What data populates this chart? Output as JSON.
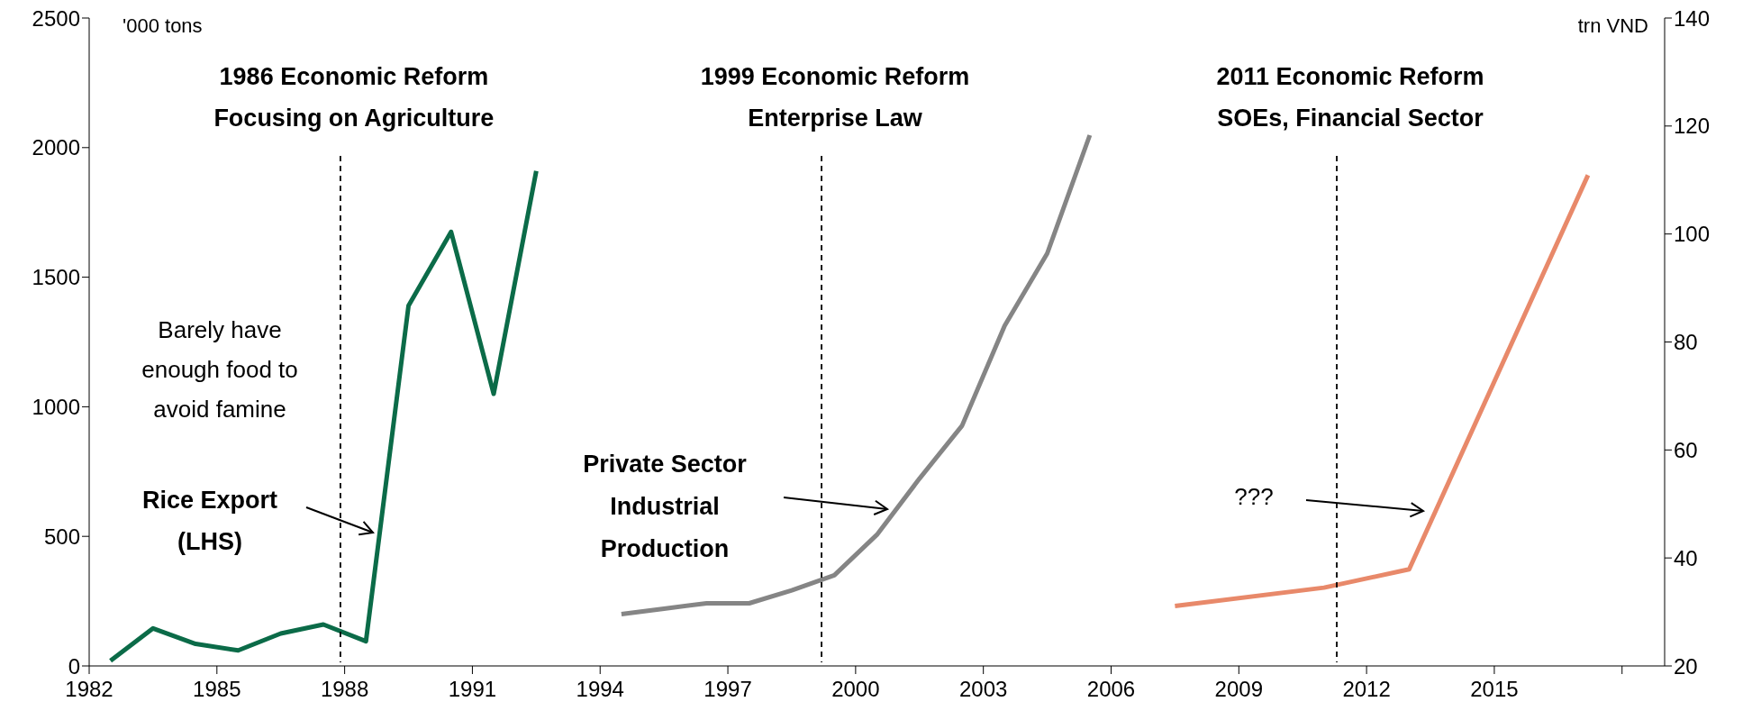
{
  "chart_data": {
    "type": "line",
    "ylabel": "'000 tons",
    "y2label": "trn VND",
    "xlim": [
      1982,
      2019
    ],
    "xticks": [
      1982,
      1985,
      1988,
      1991,
      1994,
      1997,
      2000,
      2003,
      2006,
      2009,
      2012,
      2015,
      {
        "value": 2018,
        "label": null
      }
    ],
    "ylim": [
      0,
      2500
    ],
    "yticks": [
      0,
      500,
      1000,
      1500,
      2000,
      2500
    ],
    "y2lim": [
      20,
      140
    ],
    "y2ticks": [
      20,
      40,
      60,
      80,
      100,
      120,
      140
    ],
    "series": [
      {
        "color": "#0b6b48",
        "x": [
          1982.5,
          1983.5,
          1984.5,
          1985.5,
          1986.5,
          1987.5,
          1988.5,
          1989.5,
          1990.5,
          1991.5,
          1992.5
        ],
        "values": [
          20,
          145,
          85,
          60,
          125,
          160,
          95,
          1390,
          1675,
          1050,
          1910
        ]
      },
      {
        "color": "#858585",
        "axis": "y2",
        "x": [
          1994.5,
          1995.5,
          1996.5,
          1997.5,
          1998.5,
          1999.5,
          2000.5,
          2001.5,
          2002.5,
          2003.5,
          2004.5,
          2005.5
        ],
        "values": [
          29.6,
          30.6,
          31.6,
          31.6,
          34,
          36.8,
          44.3,
          54.7,
          64.5,
          83,
          96.4,
          118.3
        ]
      },
      {
        "color": "#e8896a",
        "axis": "y2",
        "x": [
          2007.5,
          2011,
          2013,
          2017.2
        ],
        "values": [
          31.1,
          34.5,
          37.9,
          110.9
        ]
      }
    ],
    "ref_lines": [
      {
        "axis": "x",
        "value": 1987.9,
        "label": "1986 Economic Reform\nFocusing on Agriculture",
        "color": "#000000",
        "line_style": "dashed"
      },
      {
        "axis": "x",
        "value": 1999.2,
        "label": "1999 Economic Reform\nEnterprise Law",
        "color": "#000000",
        "line_style": "dashed"
      },
      {
        "axis": "x",
        "value": 2011.3,
        "label": "2011 Economic Reform\nSOEs, Financial Sector",
        "color": "#000000",
        "line_style": "dashed"
      }
    ],
    "annotations": [
      "Barely have\nenough food to\navoid famine",
      "Rice Export\n(LHS)",
      "Private Sector\nIndustrial\nProduction",
      "???"
    ],
    "grid": false,
    "legend": false,
    "marker": "none",
    "line_style": "solid"
  }
}
